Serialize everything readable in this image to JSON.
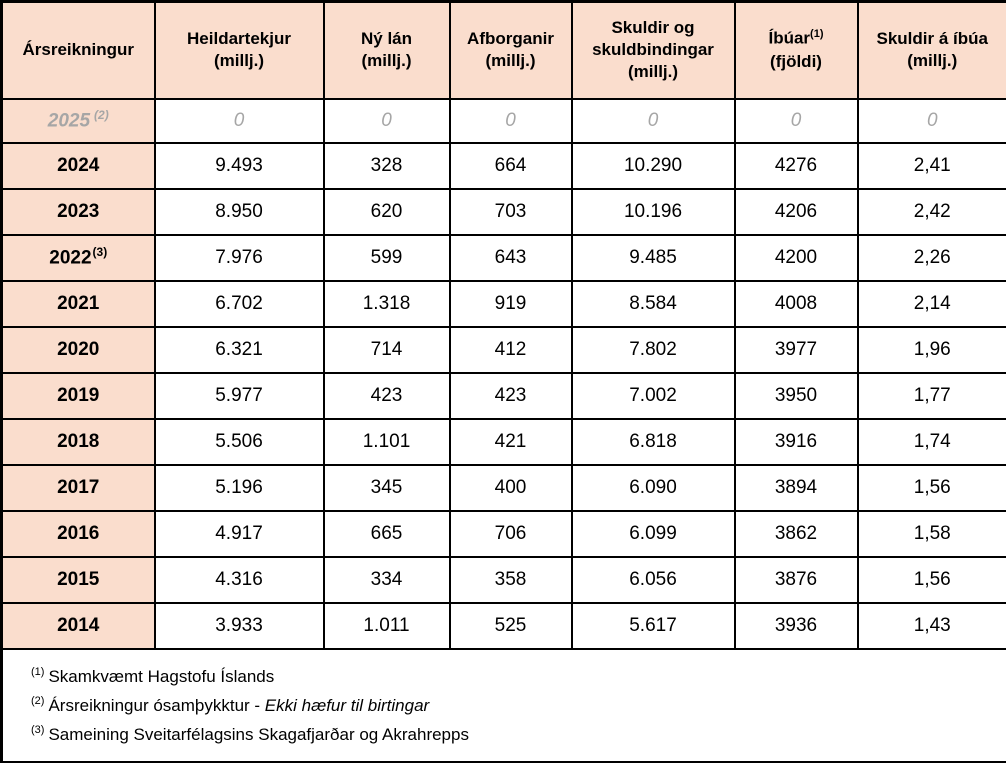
{
  "colors": {
    "header_bg": "#FADDCD",
    "muted_text": "#A6A6A6",
    "border": "#000000"
  },
  "table": {
    "columns": [
      {
        "id": "arsreikningur",
        "label": "Ársreikningur",
        "sup": "",
        "sub": ""
      },
      {
        "id": "heildartekjur",
        "label": "Heildartekjur",
        "sup": "",
        "sub": "(millj.)"
      },
      {
        "id": "ny-lan",
        "label": "Ný lán",
        "sup": "",
        "sub": "(millj.)"
      },
      {
        "id": "afborganir",
        "label": "Afborganir",
        "sup": "",
        "sub": "(millj.)"
      },
      {
        "id": "skuldir-og-skuldbindingar",
        "label": "Skuldir og skuldbindingar",
        "sup": "",
        "sub": "(millj.)"
      },
      {
        "id": "ibuar",
        "label": "Íbúar",
        "sup": "(1)",
        "sub": "(fjöldi)"
      },
      {
        "id": "skuldir-a-ibua",
        "label": "Skuldir á íbúa",
        "sup": "",
        "sub": "(millj.)"
      }
    ],
    "rows": [
      {
        "year": "2025",
        "sup": "(2)",
        "muted": true,
        "values": [
          "0",
          "0",
          "0",
          "0",
          "0",
          "0"
        ]
      },
      {
        "year": "2024",
        "sup": "",
        "muted": false,
        "values": [
          "9.493",
          "328",
          "664",
          "10.290",
          "4276",
          "2,41"
        ]
      },
      {
        "year": "2023",
        "sup": "",
        "muted": false,
        "values": [
          "8.950",
          "620",
          "703",
          "10.196",
          "4206",
          "2,42"
        ]
      },
      {
        "year": "2022",
        "sup": "(3)",
        "muted": false,
        "values": [
          "7.976",
          "599",
          "643",
          "9.485",
          "4200",
          "2,26"
        ]
      },
      {
        "year": "2021",
        "sup": "",
        "muted": false,
        "values": [
          "6.702",
          "1.318",
          "919",
          "8.584",
          "4008",
          "2,14"
        ]
      },
      {
        "year": "2020",
        "sup": "",
        "muted": false,
        "values": [
          "6.321",
          "714",
          "412",
          "7.802",
          "3977",
          "1,96"
        ]
      },
      {
        "year": "2019",
        "sup": "",
        "muted": false,
        "values": [
          "5.977",
          "423",
          "423",
          "7.002",
          "3950",
          "1,77"
        ]
      },
      {
        "year": "2018",
        "sup": "",
        "muted": false,
        "values": [
          "5.506",
          "1.101",
          "421",
          "6.818",
          "3916",
          "1,74"
        ]
      },
      {
        "year": "2017",
        "sup": "",
        "muted": false,
        "values": [
          "5.196",
          "345",
          "400",
          "6.090",
          "3894",
          "1,56"
        ]
      },
      {
        "year": "2016",
        "sup": "",
        "muted": false,
        "values": [
          "4.917",
          "665",
          "706",
          "6.099",
          "3862",
          "1,58"
        ]
      },
      {
        "year": "2015",
        "sup": "",
        "muted": false,
        "values": [
          "4.316",
          "334",
          "358",
          "6.056",
          "3876",
          "1,56"
        ]
      },
      {
        "year": "2014",
        "sup": "",
        "muted": false,
        "values": [
          "3.933",
          "1.011",
          "525",
          "5.617",
          "3936",
          "1,43"
        ]
      }
    ],
    "footnotes": [
      {
        "sup": "(1)",
        "text": "Skamkvæmt Hagstofu Íslands",
        "italic": ""
      },
      {
        "sup": "(2)",
        "text": "Ársreikningur ósamþykktur - ",
        "italic": "Ekki hæfur til birtingar"
      },
      {
        "sup": "(3)",
        "text": "Sameining Sveitarfélagsins Skagafjarðar og Akrahrepps",
        "italic": ""
      }
    ]
  }
}
